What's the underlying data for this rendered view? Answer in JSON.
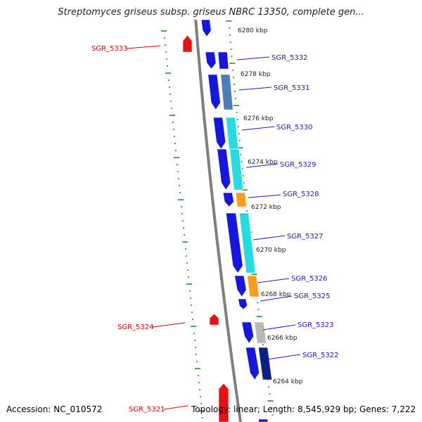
{
  "title": "Streptomyces griseus subsp. griseus NBRC 13350, complete gen...",
  "footer": {
    "accession": "Accession: NC_010572",
    "topology": "Topology: linear; Length: 8,545,929 bp; Genes: 7,222"
  },
  "colors": {
    "backbone": "#7f7f7f",
    "tick_green": "#2e8b2e",
    "gene_blue": "#1515e6",
    "label_blue": "#1a1acc",
    "label_red": "#e00000",
    "red_gene": "#e81010",
    "cyan": "#22dddd",
    "steelblue": "#4a7ec0",
    "orange": "#ff9a1a",
    "gray": "#b8b8b8",
    "navy": "#0c1f86"
  },
  "kbp_labels": [
    {
      "text": "6280 kbp",
      "pos": 6280
    },
    {
      "text": "6278 kbp",
      "pos": 6278
    },
    {
      "text": "6276 kbp",
      "pos": 6276
    },
    {
      "text": "6274 kbp",
      "pos": 6274
    },
    {
      "text": "6272 kbp",
      "pos": 6272
    },
    {
      "text": "6270 kbp",
      "pos": 6270
    },
    {
      "text": "6268 kbp",
      "pos": 6268
    },
    {
      "text": "6266 kbp",
      "pos": 6266
    },
    {
      "text": "6264 kbp",
      "pos": 6264
    }
  ],
  "gene_labels": [
    {
      "text": "SGR_5333",
      "side": "left",
      "color": "red"
    },
    {
      "text": "SGR_5332",
      "side": "right",
      "color": "blue"
    },
    {
      "text": "SGR_5331",
      "side": "right",
      "color": "blue"
    },
    {
      "text": "SGR_5330",
      "side": "right",
      "color": "blue"
    },
    {
      "text": "SGR_5329",
      "side": "right",
      "color": "blue"
    },
    {
      "text": "SGR_5328",
      "side": "right",
      "color": "blue"
    },
    {
      "text": "SGR_5327",
      "side": "right",
      "color": "blue"
    },
    {
      "text": "SGR_5326",
      "side": "right",
      "color": "blue"
    },
    {
      "text": "SGR_5325",
      "side": "right",
      "color": "blue"
    },
    {
      "text": "SGR_5324",
      "side": "left",
      "color": "red"
    },
    {
      "text": "SGR_5323",
      "side": "right",
      "color": "blue"
    },
    {
      "text": "SGR_5322",
      "side": "right",
      "color": "blue"
    },
    {
      "text": "SGR_5321",
      "side": "left",
      "color": "red"
    }
  ]
}
